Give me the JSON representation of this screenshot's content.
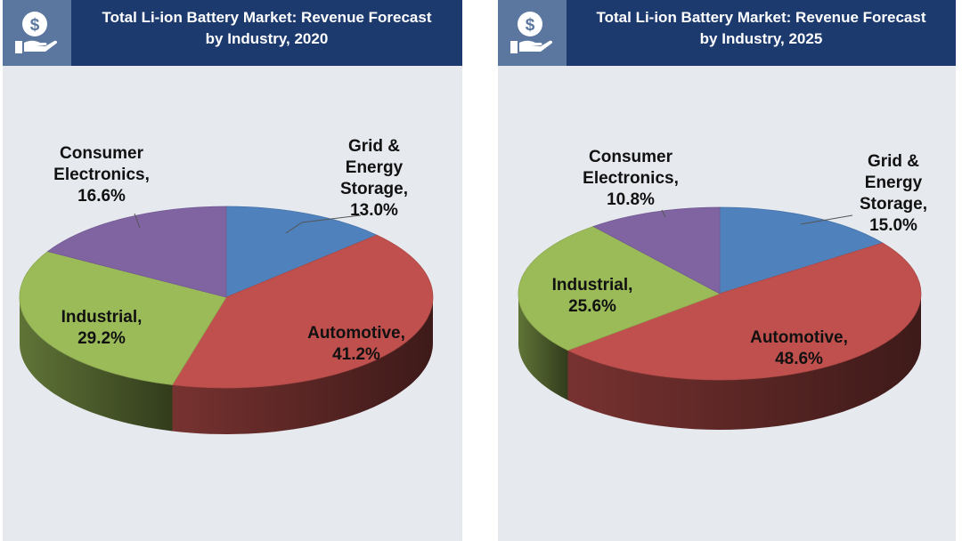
{
  "header_icon": "money-hand-icon",
  "chart_data": [
    {
      "type": "pie",
      "title_line1": "Total Li-ion Battery Market: Revenue Forecast",
      "title_line2": "by Industry, 2020",
      "slices": [
        {
          "name": "Grid & Energy Storage",
          "value": 13.0,
          "color": "#4f81bd",
          "label_lines": [
            "Grid &",
            "Energy",
            "Storage,",
            "13.0%"
          ]
        },
        {
          "name": "Automotive",
          "value": 41.2,
          "color": "#c0504d",
          "label_lines": [
            "Automotive,",
            "41.2%"
          ]
        },
        {
          "name": "Industrial",
          "value": 29.2,
          "color": "#9bbb59",
          "label_lines": [
            "Industrial,",
            "29.2%"
          ]
        },
        {
          "name": "Consumer Electronics",
          "value": 16.6,
          "color": "#8064a2",
          "label_lines": [
            "Consumer",
            "Electronics,",
            "16.6%"
          ]
        }
      ]
    },
    {
      "type": "pie",
      "title_line1": "Total Li-ion Battery Market: Revenue Forecast",
      "title_line2": "by Industry, 2025",
      "slices": [
        {
          "name": "Grid & Energy Storage",
          "value": 15.0,
          "color": "#4f81bd",
          "label_lines": [
            "Grid   &",
            "Energy",
            "Storage,",
            "15.0%"
          ]
        },
        {
          "name": "Automotive",
          "value": 48.6,
          "color": "#c0504d",
          "label_lines": [
            "Automotive,",
            "48.6%"
          ]
        },
        {
          "name": "Industrial",
          "value": 25.6,
          "color": "#9bbb59",
          "label_lines": [
            "Industrial,",
            "25.6%"
          ]
        },
        {
          "name": "Consumer Electronics",
          "value": 10.8,
          "color": "#8064a2",
          "label_lines": [
            "Consumer",
            "Electronics,",
            "10.8%"
          ]
        }
      ]
    }
  ]
}
